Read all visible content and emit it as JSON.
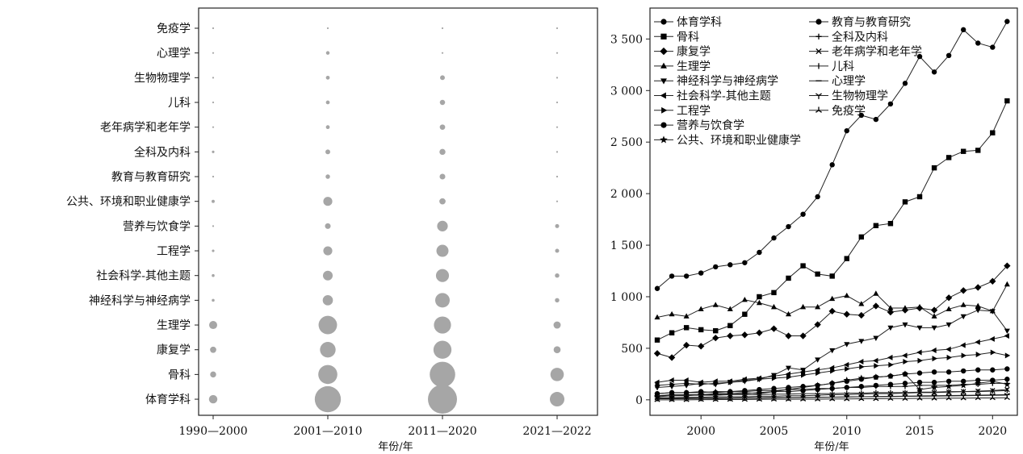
{
  "chart_data": [
    {
      "type": "bubble",
      "xlabel": "年份/年",
      "categories": [
        "1990—2000",
        "2001—2010",
        "2011—2020",
        "2021—2022"
      ],
      "subjects": [
        "免疫学",
        "心理学",
        "生物物理学",
        "儿科",
        "老年病学和老年学",
        "全科及内科",
        "教育与教育研究",
        "公共、环境和职业健康学",
        "营养与饮食学",
        "工程学",
        "社会科学-其他主题",
        "神经科学与神经病学",
        "生理学",
        "康复学",
        "骨科",
        "体育学科"
      ],
      "sizes": [
        [
          0,
          3,
          3,
          0
        ],
        [
          5,
          40,
          0,
          0
        ],
        [
          0,
          45,
          70,
          5
        ],
        [
          5,
          45,
          85,
          3
        ],
        [
          0,
          45,
          90,
          4
        ],
        [
          20,
          70,
          110,
          8
        ],
        [
          10,
          60,
          100,
          10
        ],
        [
          30,
          250,
          120,
          5
        ],
        [
          5,
          100,
          350,
          50
        ],
        [
          20,
          250,
          450,
          50
        ],
        [
          25,
          290,
          520,
          60
        ],
        [
          25,
          320,
          650,
          60
        ],
        [
          200,
          1050,
          900,
          160
        ],
        [
          120,
          750,
          1000,
          150
        ],
        [
          110,
          1120,
          2000,
          550
        ],
        [
          220,
          2100,
          2600,
          650
        ]
      ],
      "color": "#a6a6a6"
    },
    {
      "type": "line",
      "xlabel": "年份/年",
      "xlim": [
        1996.5,
        2021.7
      ],
      "ylim": [
        -150,
        3800
      ],
      "xticks": [
        2000,
        2005,
        2010,
        2015,
        2020
      ],
      "yticks": [
        0,
        500,
        1000,
        1500,
        2000,
        2500,
        3000,
        3500
      ],
      "ytick_labels": [
        "0",
        "500",
        "1 000",
        "1 500",
        "2 000",
        "2 500",
        "3 000",
        "3 500"
      ],
      "x": [
        1997,
        1998,
        1999,
        2000,
        2001,
        2002,
        2003,
        2004,
        2005,
        2006,
        2007,
        2008,
        2009,
        2010,
        2011,
        2012,
        2013,
        2014,
        2015,
        2016,
        2017,
        2018,
        2019,
        2020,
        2021
      ],
      "legend_col1": [
        "体育学科",
        "骨科",
        "康复学",
        "生理学",
        "神经科学与神经病学",
        "社会科学-其他主题",
        "工程学",
        "营养与饮食学",
        "公共、环境和职业健康学"
      ],
      "legend_col2": [
        "教育与教育研究",
        "全科及内科",
        "老年病学和老年学",
        "儿科",
        "心理学",
        "生物物理学",
        "免疫学"
      ],
      "series": [
        {
          "name": "体育学科",
          "marker": "circle",
          "values": [
            1080,
            1200,
            1200,
            1230,
            1290,
            1310,
            1330,
            1430,
            1570,
            1680,
            1800,
            1970,
            2280,
            2610,
            2760,
            2720,
            2870,
            3070,
            3330,
            3180,
            3340,
            3590,
            3460,
            3420,
            3670
          ]
        },
        {
          "name": "骨科",
          "marker": "square",
          "values": [
            580,
            650,
            700,
            680,
            670,
            720,
            830,
            1000,
            1040,
            1180,
            1300,
            1220,
            1200,
            1370,
            1580,
            1690,
            1710,
            1920,
            1970,
            2250,
            2350,
            2410,
            2420,
            2590,
            2900
          ]
        },
        {
          "name": "康复学",
          "marker": "diamond",
          "values": [
            450,
            410,
            530,
            520,
            600,
            620,
            630,
            650,
            690,
            620,
            620,
            730,
            860,
            830,
            820,
            910,
            850,
            870,
            890,
            870,
            990,
            1060,
            1090,
            1150,
            1300
          ]
        },
        {
          "name": "生理学",
          "marker": "triangle-up",
          "values": [
            800,
            830,
            810,
            880,
            920,
            880,
            970,
            940,
            900,
            830,
            900,
            900,
            980,
            1010,
            930,
            1030,
            890,
            890,
            900,
            810,
            880,
            920,
            910,
            860,
            1120
          ]
        },
        {
          "name": "神经科学与神经病学",
          "marker": "triangle-down",
          "values": [
            120,
            130,
            140,
            160,
            150,
            170,
            180,
            200,
            240,
            310,
            290,
            390,
            480,
            540,
            570,
            600,
            700,
            730,
            700,
            700,
            730,
            810,
            870,
            860,
            670
          ]
        },
        {
          "name": "社会科学-其他主题",
          "marker": "triangle-left",
          "values": [
            170,
            190,
            190,
            170,
            180,
            180,
            200,
            210,
            230,
            250,
            270,
            290,
            310,
            340,
            370,
            380,
            410,
            430,
            460,
            480,
            490,
            530,
            560,
            590,
            620
          ]
        },
        {
          "name": "工程学",
          "marker": "triangle-right",
          "values": [
            140,
            150,
            160,
            150,
            160,
            170,
            190,
            200,
            210,
            220,
            240,
            260,
            280,
            300,
            320,
            330,
            340,
            370,
            380,
            400,
            410,
            430,
            440,
            460,
            430
          ]
        },
        {
          "name": "营养与饮食学",
          "marker": "hexagon",
          "values": [
            60,
            70,
            70,
            80,
            70,
            80,
            90,
            100,
            110,
            120,
            130,
            140,
            160,
            180,
            200,
            220,
            230,
            250,
            260,
            270,
            270,
            280,
            290,
            290,
            300
          ]
        },
        {
          "name": "公共、环境和职业健康学",
          "marker": "star",
          "values": [
            30,
            40,
            40,
            50,
            50,
            60,
            70,
            60,
            80,
            100,
            120,
            140,
            160,
            190,
            210,
            220,
            230,
            250,
            100,
            120,
            130,
            140,
            160,
            180,
            150
          ]
        },
        {
          "name": "教育与教育研究",
          "marker": "octagon",
          "values": [
            40,
            50,
            50,
            50,
            60,
            60,
            60,
            70,
            80,
            80,
            90,
            100,
            110,
            120,
            130,
            140,
            150,
            160,
            170,
            170,
            180,
            180,
            190,
            190,
            200
          ]
        },
        {
          "name": "全科及内科",
          "marker": "plus",
          "values": [
            60,
            70,
            70,
            70,
            80,
            80,
            80,
            90,
            90,
            100,
            100,
            110,
            110,
            120,
            120,
            130,
            130,
            130,
            140,
            140,
            140,
            150,
            150,
            160,
            160
          ]
        },
        {
          "name": "老年病学和老年学",
          "marker": "x",
          "values": [
            20,
            20,
            25,
            25,
            30,
            30,
            30,
            35,
            35,
            40,
            40,
            45,
            50,
            50,
            55,
            60,
            60,
            65,
            70,
            70,
            75,
            80,
            85,
            90,
            100
          ]
        },
        {
          "name": "儿科",
          "marker": "vline",
          "values": [
            40,
            40,
            45,
            45,
            45,
            50,
            50,
            50,
            55,
            55,
            60,
            60,
            60,
            65,
            65,
            70,
            70,
            70,
            75,
            75,
            80,
            80,
            80,
            85,
            90
          ]
        },
        {
          "name": "心理学",
          "marker": "hline",
          "values": [
            10,
            10,
            10,
            12,
            12,
            14,
            15,
            16,
            18,
            20,
            22,
            24,
            26,
            28,
            30,
            32,
            34,
            36,
            38,
            40,
            42,
            44,
            46,
            48,
            50
          ]
        },
        {
          "name": "生物物理学",
          "marker": "tri-down",
          "values": [
            15,
            15,
            16,
            16,
            18,
            18,
            20,
            20,
            22,
            22,
            24,
            25,
            26,
            28,
            30,
            30,
            32,
            34,
            35,
            36,
            38,
            40,
            42,
            44,
            46
          ]
        },
        {
          "name": "免疫学",
          "marker": "tri-up",
          "values": [
            0,
            0,
            0,
            2,
            2,
            3,
            3,
            4,
            5,
            5,
            6,
            6,
            8,
            8,
            10,
            10,
            12,
            12,
            14,
            14,
            16,
            16,
            18,
            18,
            20
          ]
        }
      ]
    }
  ]
}
